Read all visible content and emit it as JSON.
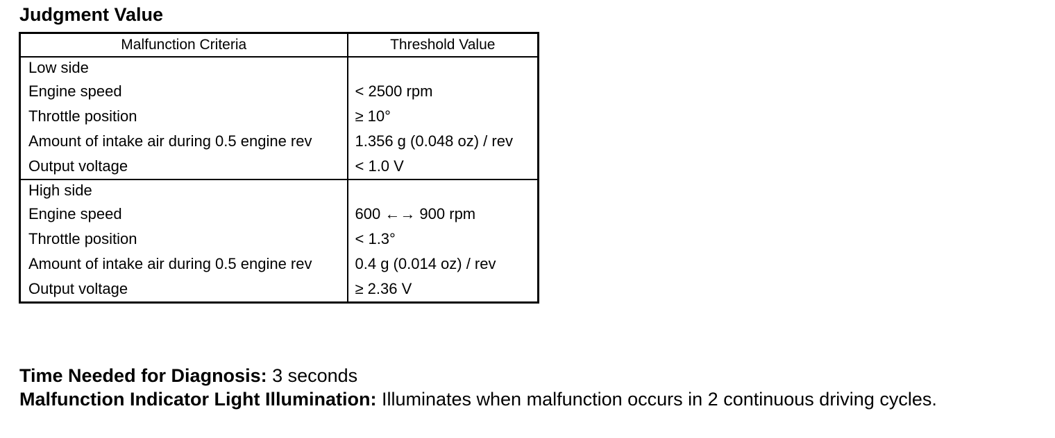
{
  "section_title": "Judgment Value",
  "table": {
    "header": [
      "Malfunction Criteria",
      "Threshold Value"
    ],
    "groups": [
      {
        "label": "Low side",
        "rows": [
          [
            "Engine speed",
            "< 2500 rpm"
          ],
          [
            "Throttle position",
            "≥ 10°"
          ],
          [
            "Amount of intake air during 0.5 engine rev",
            "1.356 g (0.048 oz) / rev"
          ],
          [
            "Output voltage",
            "< 1.0 V"
          ]
        ]
      },
      {
        "label": "High side",
        "rows": [
          [
            "Engine speed",
            "600 ←→ 900 rpm"
          ],
          [
            "Throttle position",
            "< 1.3°"
          ],
          [
            "Amount of intake air during 0.5 engine rev",
            "0.4 g (0.014 oz) / rev"
          ],
          [
            "Output voltage",
            "≥ 2.36 V"
          ]
        ]
      }
    ]
  },
  "notes": [
    {
      "label": "Time Needed for Diagnosis:",
      "text": "3 seconds"
    },
    {
      "label": "Malfunction Indicator Light Illumination:",
      "text": "Illuminates when malfunction occurs in 2 continuous driving cycles."
    }
  ]
}
